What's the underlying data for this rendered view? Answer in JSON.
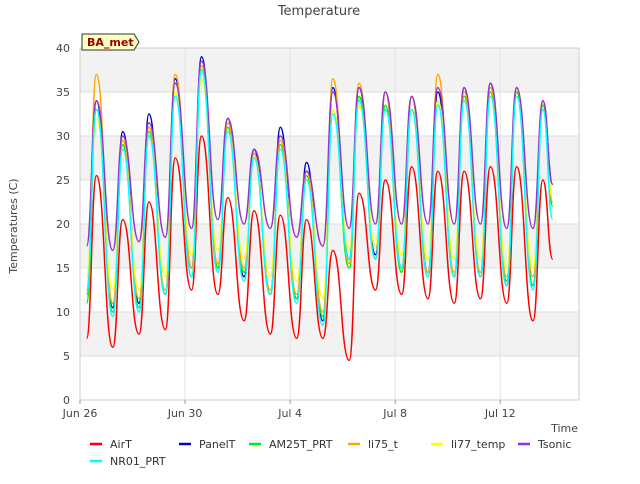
{
  "chart_data": {
    "type": "line",
    "title": "Temperature",
    "xlabel": "Time",
    "ylabel": "Temperatures (C)",
    "badge": "BA_met",
    "x_domain": [
      "2025-06-26",
      "2025-07-15"
    ],
    "x_ticks": [
      {
        "date": "2025-06-26",
        "label": "Jun 26"
      },
      {
        "date": "2025-06-30",
        "label": "Jun 30"
      },
      {
        "date": "2025-07-04",
        "label": "Jul 4"
      },
      {
        "date": "2025-07-08",
        "label": "Jul 8"
      },
      {
        "date": "2025-07-12",
        "label": "Jul 12"
      }
    ],
    "ylim": [
      0,
      40
    ],
    "yticks": [
      0,
      5,
      10,
      15,
      20,
      25,
      30,
      35,
      40
    ],
    "grid": true,
    "legend_position": "bottom",
    "series": [
      {
        "name": "AirT",
        "color": "#ff0000",
        "x": [
          "2025-06-26T06:00",
          "2025-06-26T15:00",
          "2025-06-27T06:00",
          "2025-06-27T15:00",
          "2025-06-28T06:00",
          "2025-06-28T15:00",
          "2025-06-29T06:00",
          "2025-06-29T15:00",
          "2025-06-30T06:00",
          "2025-06-30T15:00",
          "2025-07-01T06:00",
          "2025-07-01T15:00",
          "2025-07-02T06:00",
          "2025-07-02T15:00",
          "2025-07-03T06:00",
          "2025-07-03T15:00",
          "2025-07-04T06:00",
          "2025-07-04T15:00",
          "2025-07-05T06:00",
          "2025-07-05T15:00",
          "2025-07-06T06:00",
          "2025-07-06T15:00",
          "2025-07-07T06:00",
          "2025-07-07T15:00",
          "2025-07-08T06:00",
          "2025-07-08T15:00",
          "2025-07-09T06:00",
          "2025-07-09T15:00",
          "2025-07-10T06:00",
          "2025-07-10T15:00",
          "2025-07-11T06:00",
          "2025-07-11T15:00",
          "2025-07-12T06:00",
          "2025-07-12T15:00",
          "2025-07-13T06:00",
          "2025-07-13T15:00",
          "2025-07-14T00:00"
        ],
        "y": [
          7,
          25.5,
          6,
          20.5,
          7.5,
          22.5,
          8,
          27.5,
          12.5,
          30,
          12,
          23,
          9,
          21.5,
          7.5,
          21,
          7,
          20.5,
          7,
          17,
          4.5,
          23.5,
          12.5,
          25,
          12,
          26.5,
          11.5,
          26,
          11,
          26,
          11.5,
          26.5,
          11,
          26.5,
          9,
          25,
          16
        ]
      },
      {
        "name": "PanelT",
        "color": "#0000cc",
        "x": [
          "2025-06-26T06:00",
          "2025-06-26T15:00",
          "2025-06-27T06:00",
          "2025-06-27T15:00",
          "2025-06-28T06:00",
          "2025-06-28T15:00",
          "2025-06-29T06:00",
          "2025-06-29T15:00",
          "2025-06-30T06:00",
          "2025-06-30T15:00",
          "2025-07-01T06:00",
          "2025-07-01T15:00",
          "2025-07-02T06:00",
          "2025-07-02T15:00",
          "2025-07-03T06:00",
          "2025-07-03T15:00",
          "2025-07-04T06:00",
          "2025-07-04T15:00",
          "2025-07-05T06:00",
          "2025-07-05T15:00",
          "2025-07-06T06:00",
          "2025-07-06T15:00",
          "2025-07-07T06:00",
          "2025-07-07T15:00",
          "2025-07-08T06:00",
          "2025-07-08T15:00",
          "2025-07-09T06:00",
          "2025-07-09T15:00",
          "2025-07-10T06:00",
          "2025-07-10T15:00",
          "2025-07-11T06:00",
          "2025-07-11T15:00",
          "2025-07-12T06:00",
          "2025-07-12T15:00",
          "2025-07-13T06:00",
          "2025-07-13T15:00",
          "2025-07-14T00:00"
        ],
        "y": [
          12,
          34,
          10.5,
          30.5,
          11,
          32.5,
          12,
          36.5,
          15,
          39,
          15,
          32,
          14,
          28.5,
          12,
          31,
          11.5,
          27,
          9,
          35.5,
          16,
          35.5,
          16.5,
          35,
          15,
          34.5,
          14.5,
          35,
          14,
          35.5,
          14,
          36,
          13,
          35.5,
          13,
          34,
          24.5
        ]
      },
      {
        "name": "AM25T_PRT",
        "color": "#00ee00",
        "x": [
          "2025-06-26T06:00",
          "2025-06-26T15:00",
          "2025-06-27T06:00",
          "2025-06-27T15:00",
          "2025-06-28T06:00",
          "2025-06-28T15:00",
          "2025-06-29T06:00",
          "2025-06-29T15:00",
          "2025-06-30T06:00",
          "2025-06-30T15:00",
          "2025-07-01T06:00",
          "2025-07-01T15:00",
          "2025-07-02T06:00",
          "2025-07-02T15:00",
          "2025-07-03T06:00",
          "2025-07-03T15:00",
          "2025-07-04T06:00",
          "2025-07-04T15:00",
          "2025-07-05T06:00",
          "2025-07-05T15:00",
          "2025-07-06T06:00",
          "2025-07-06T15:00",
          "2025-07-07T06:00",
          "2025-07-07T15:00",
          "2025-07-08T06:00",
          "2025-07-08T15:00",
          "2025-07-09T06:00",
          "2025-07-09T15:00",
          "2025-07-10T06:00",
          "2025-07-10T15:00",
          "2025-07-11T06:00",
          "2025-07-11T15:00",
          "2025-07-12T06:00",
          "2025-07-12T15:00",
          "2025-07-13T06:00",
          "2025-07-13T15:00",
          "2025-07-14T00:00"
        ],
        "y": [
          11,
          33,
          10,
          29,
          10.5,
          30.5,
          12,
          35,
          14,
          37.5,
          15,
          31,
          14.5,
          28,
          12,
          29,
          11.5,
          25.5,
          9.5,
          33,
          15,
          34.5,
          16,
          33.5,
          14.5,
          33,
          14,
          34,
          14,
          34.5,
          14.5,
          35,
          13.5,
          35,
          13,
          33.5,
          22
        ]
      },
      {
        "name": "li75_t",
        "color": "#ffa500",
        "x": [
          "2025-06-26T06:00",
          "2025-06-26T15:00",
          "2025-06-27T06:00",
          "2025-06-27T15:00",
          "2025-06-28T06:00",
          "2025-06-28T15:00",
          "2025-06-29T06:00",
          "2025-06-29T15:00",
          "2025-06-30T06:00",
          "2025-06-30T15:00",
          "2025-07-01T06:00",
          "2025-07-01T15:00",
          "2025-07-02T06:00",
          "2025-07-02T15:00",
          "2025-07-03T06:00",
          "2025-07-03T15:00",
          "2025-07-04T06:00",
          "2025-07-04T15:00",
          "2025-07-05T06:00",
          "2025-07-05T15:00",
          "2025-07-06T06:00",
          "2025-07-06T15:00",
          "2025-07-07T06:00",
          "2025-07-07T15:00",
          "2025-07-08T06:00",
          "2025-07-08T15:00",
          "2025-07-09T06:00",
          "2025-07-09T15:00",
          "2025-07-10T06:00",
          "2025-07-10T15:00",
          "2025-07-11T06:00",
          "2025-07-11T15:00",
          "2025-07-12T06:00",
          "2025-07-12T15:00",
          "2025-07-13T06:00",
          "2025-07-13T15:00",
          "2025-07-14T00:00"
        ],
        "y": [
          12.5,
          37,
          11,
          29.5,
          11.5,
          31,
          12.5,
          37,
          15,
          38,
          15.5,
          31.5,
          15,
          28,
          12.5,
          29.5,
          12,
          26,
          10,
          36.5,
          15.5,
          36,
          16,
          35,
          15,
          34.5,
          14.5,
          37,
          14.5,
          35,
          14.5,
          35.5,
          14,
          35.5,
          14,
          34,
          22.5
        ]
      },
      {
        "name": "li77_temp",
        "color": "#ffff00",
        "x": [
          "2025-06-26T06:00",
          "2025-06-26T15:00",
          "2025-06-27T06:00",
          "2025-06-27T15:00",
          "2025-06-28T06:00",
          "2025-06-28T15:00",
          "2025-06-29T06:00",
          "2025-06-29T15:00",
          "2025-06-30T06:00",
          "2025-06-30T15:00",
          "2025-07-01T06:00",
          "2025-07-01T15:00",
          "2025-07-02T06:00",
          "2025-07-02T15:00",
          "2025-07-03T06:00",
          "2025-07-03T15:00",
          "2025-07-04T06:00",
          "2025-07-04T15:00",
          "2025-07-05T06:00",
          "2025-07-05T15:00",
          "2025-07-06T06:00",
          "2025-07-06T15:00",
          "2025-07-07T06:00",
          "2025-07-07T15:00",
          "2025-07-08T06:00",
          "2025-07-08T15:00",
          "2025-07-09T06:00",
          "2025-07-09T15:00",
          "2025-07-10T06:00",
          "2025-07-10T15:00",
          "2025-07-11T06:00",
          "2025-07-11T15:00",
          "2025-07-12T06:00",
          "2025-07-12T15:00",
          "2025-07-13T06:00",
          "2025-07-13T15:00",
          "2025-07-14T00:00"
        ],
        "y": [
          14,
          32,
          12.5,
          28.5,
          12.5,
          30,
          14,
          35,
          16.5,
          36.5,
          17,
          30.5,
          16,
          27.5,
          14,
          28.5,
          13.5,
          25,
          11.5,
          33,
          17,
          33.5,
          17.5,
          33,
          16.5,
          33,
          16,
          34,
          16,
          34,
          16,
          34.5,
          15,
          34.5,
          15,
          33,
          23
        ]
      },
      {
        "name": "Tsonic",
        "color": "#9932cc",
        "x": [
          "2025-06-26T06:00",
          "2025-06-26T15:00",
          "2025-06-27T06:00",
          "2025-06-27T15:00",
          "2025-06-28T06:00",
          "2025-06-28T15:00",
          "2025-06-29T06:00",
          "2025-06-29T15:00",
          "2025-06-30T06:00",
          "2025-06-30T15:00",
          "2025-07-01T06:00",
          "2025-07-01T15:00",
          "2025-07-02T06:00",
          "2025-07-02T15:00",
          "2025-07-03T06:00",
          "2025-07-03T15:00",
          "2025-07-04T06:00",
          "2025-07-04T15:00",
          "2025-07-05T06:00",
          "2025-07-05T15:00",
          "2025-07-06T06:00",
          "2025-07-06T15:00",
          "2025-07-07T06:00",
          "2025-07-07T15:00",
          "2025-07-08T06:00",
          "2025-07-08T15:00",
          "2025-07-09T06:00",
          "2025-07-09T15:00",
          "2025-07-10T06:00",
          "2025-07-10T15:00",
          "2025-07-11T06:00",
          "2025-07-11T15:00",
          "2025-07-12T06:00",
          "2025-07-12T15:00",
          "2025-07-13T06:00",
          "2025-07-13T15:00",
          "2025-07-14T00:00"
        ],
        "y": [
          17.5,
          34,
          17,
          30,
          18,
          31.5,
          18.5,
          36,
          19.5,
          38.5,
          20.5,
          32,
          20,
          28.5,
          19.5,
          30,
          18.5,
          26,
          17.5,
          35,
          19.5,
          35.5,
          20,
          35,
          20,
          34.5,
          20,
          35.5,
          20,
          35.5,
          20,
          36,
          19.5,
          35.5,
          19.5,
          34,
          24.5
        ]
      },
      {
        "name": "NR01_PRT",
        "color": "#00ffff",
        "x": [
          "2025-06-26T06:00",
          "2025-06-26T15:00",
          "2025-06-27T06:00",
          "2025-06-27T15:00",
          "2025-06-28T06:00",
          "2025-06-28T15:00",
          "2025-06-29T06:00",
          "2025-06-29T15:00",
          "2025-06-30T06:00",
          "2025-06-30T15:00",
          "2025-07-01T06:00",
          "2025-07-01T15:00",
          "2025-07-02T06:00",
          "2025-07-02T15:00",
          "2025-07-03T06:00",
          "2025-07-03T15:00",
          "2025-07-04T06:00",
          "2025-07-04T15:00",
          "2025-07-05T06:00",
          "2025-07-05T15:00",
          "2025-07-06T06:00",
          "2025-07-06T15:00",
          "2025-07-07T06:00",
          "2025-07-07T15:00",
          "2025-07-08T06:00",
          "2025-07-08T15:00",
          "2025-07-09T06:00",
          "2025-07-09T15:00",
          "2025-07-10T06:00",
          "2025-07-10T15:00",
          "2025-07-11T06:00",
          "2025-07-11T15:00",
          "2025-07-12T06:00",
          "2025-07-12T15:00",
          "2025-07-13T06:00",
          "2025-07-13T15:00",
          "2025-07-14T00:00"
        ],
        "y": [
          12,
          33,
          9.5,
          28.5,
          10,
          30,
          12,
          34.5,
          14,
          37.5,
          14.5,
          30.5,
          13.5,
          27.5,
          12,
          28.5,
          11,
          25,
          8.5,
          32.5,
          16,
          34,
          16,
          33,
          15,
          33,
          14,
          33.5,
          14,
          34,
          14,
          34.5,
          13,
          34.5,
          12.5,
          33,
          20.5
        ]
      }
    ]
  }
}
